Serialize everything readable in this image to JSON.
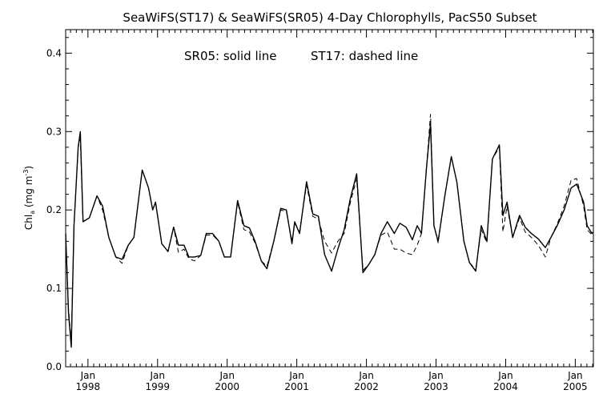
{
  "chart_data": {
    "type": "line",
    "title": "SeaWiFS(ST17) & SeaWiFS(SR05) 4-Day Chlorophylls, PacS50 Subset",
    "annotation": {
      "sr05": "SR05: solid line",
      "st17": "ST17: dashed line"
    },
    "ylabel": {
      "main": "Chl",
      "sub": "a",
      "units": " (mg m",
      "exp": "-3",
      "close": ")"
    },
    "ylim": [
      0,
      0.43
    ],
    "xlim": [
      1997.68,
      2005.26
    ],
    "y_ticks": [
      0.0,
      0.1,
      0.2,
      0.3,
      0.4
    ],
    "y_tick_labels": [
      "0.0",
      "0.1",
      "0.2",
      "0.3",
      "0.4"
    ],
    "x_ticks": [
      {
        "month": "Jan",
        "year": "1998",
        "x": 1998.0
      },
      {
        "month": "Jan",
        "year": "1999",
        "x": 1999.0
      },
      {
        "month": "Jan",
        "year": "2000",
        "x": 2000.0
      },
      {
        "month": "Jan",
        "year": "2001",
        "x": 2001.0
      },
      {
        "month": "Jan",
        "year": "2002",
        "x": 2002.0
      },
      {
        "month": "Jan",
        "year": "2003",
        "x": 2003.0
      },
      {
        "month": "Jan",
        "year": "2004",
        "x": 2004.0
      },
      {
        "month": "Jan",
        "year": "2005",
        "x": 2005.0
      }
    ],
    "x_minor_per_year": 12,
    "grid": false,
    "series": [
      {
        "name": "SR05",
        "style": "solid",
        "color": "#000000",
        "points": [
          [
            1997.68,
            0.17
          ],
          [
            1997.72,
            0.07
          ],
          [
            1997.76,
            0.025
          ],
          [
            1997.8,
            0.18
          ],
          [
            1997.86,
            0.28
          ],
          [
            1997.89,
            0.3
          ],
          [
            1997.93,
            0.185
          ],
          [
            1998.02,
            0.19
          ],
          [
            1998.13,
            0.218
          ],
          [
            1998.21,
            0.205
          ],
          [
            1998.3,
            0.165
          ],
          [
            1998.4,
            0.14
          ],
          [
            1998.49,
            0.137
          ],
          [
            1998.58,
            0.155
          ],
          [
            1998.66,
            0.165
          ],
          [
            1998.78,
            0.251
          ],
          [
            1998.87,
            0.228
          ],
          [
            1998.93,
            0.2
          ],
          [
            1998.97,
            0.21
          ],
          [
            1999.06,
            0.157
          ],
          [
            1999.15,
            0.147
          ],
          [
            1999.23,
            0.178
          ],
          [
            1999.3,
            0.155
          ],
          [
            1999.38,
            0.155
          ],
          [
            1999.45,
            0.14
          ],
          [
            1999.53,
            0.14
          ],
          [
            1999.62,
            0.142
          ],
          [
            1999.7,
            0.17
          ],
          [
            1999.79,
            0.17
          ],
          [
            1999.88,
            0.16
          ],
          [
            1999.96,
            0.14
          ],
          [
            2000.05,
            0.14
          ],
          [
            2000.15,
            0.212
          ],
          [
            2000.24,
            0.18
          ],
          [
            2000.32,
            0.177
          ],
          [
            2000.4,
            0.16
          ],
          [
            2000.49,
            0.135
          ],
          [
            2000.57,
            0.125
          ],
          [
            2000.67,
            0.16
          ],
          [
            2000.77,
            0.202
          ],
          [
            2000.85,
            0.2
          ],
          [
            2000.93,
            0.157
          ],
          [
            2000.97,
            0.185
          ],
          [
            2001.04,
            0.17
          ],
          [
            2001.14,
            0.236
          ],
          [
            2001.23,
            0.195
          ],
          [
            2001.31,
            0.192
          ],
          [
            2001.4,
            0.143
          ],
          [
            2001.5,
            0.122
          ],
          [
            2001.59,
            0.15
          ],
          [
            2001.68,
            0.175
          ],
          [
            2001.77,
            0.215
          ],
          [
            2001.86,
            0.246
          ],
          [
            2001.95,
            0.12
          ],
          [
            2002.03,
            0.13
          ],
          [
            2002.12,
            0.143
          ],
          [
            2002.21,
            0.17
          ],
          [
            2002.3,
            0.185
          ],
          [
            2002.4,
            0.17
          ],
          [
            2002.48,
            0.183
          ],
          [
            2002.57,
            0.178
          ],
          [
            2002.66,
            0.162
          ],
          [
            2002.73,
            0.18
          ],
          [
            2002.79,
            0.17
          ],
          [
            2002.86,
            0.25
          ],
          [
            2002.92,
            0.31
          ],
          [
            2002.97,
            0.18
          ],
          [
            2003.03,
            0.16
          ],
          [
            2003.13,
            0.22
          ],
          [
            2003.22,
            0.268
          ],
          [
            2003.3,
            0.235
          ],
          [
            2003.4,
            0.16
          ],
          [
            2003.48,
            0.133
          ],
          [
            2003.57,
            0.122
          ],
          [
            2003.65,
            0.18
          ],
          [
            2003.73,
            0.16
          ],
          [
            2003.81,
            0.265
          ],
          [
            2003.91,
            0.283
          ],
          [
            2003.96,
            0.193
          ],
          [
            2004.02,
            0.21
          ],
          [
            2004.1,
            0.165
          ],
          [
            2004.2,
            0.193
          ],
          [
            2004.28,
            0.178
          ],
          [
            2004.37,
            0.17
          ],
          [
            2004.47,
            0.163
          ],
          [
            2004.57,
            0.152
          ],
          [
            2004.65,
            0.165
          ],
          [
            2004.74,
            0.18
          ],
          [
            2004.84,
            0.2
          ],
          [
            2004.94,
            0.228
          ],
          [
            2005.02,
            0.233
          ],
          [
            2005.12,
            0.21
          ],
          [
            2005.17,
            0.18
          ],
          [
            2005.24,
            0.17
          ],
          [
            2005.26,
            0.172
          ]
        ]
      },
      {
        "name": "ST17",
        "style": "dashed",
        "color": "#000000",
        "points": [
          [
            1997.68,
            0.17
          ],
          [
            1997.72,
            0.075
          ],
          [
            1997.76,
            0.03
          ],
          [
            1997.8,
            0.18
          ],
          [
            1997.86,
            0.28
          ],
          [
            1997.89,
            0.29
          ],
          [
            1997.93,
            0.185
          ],
          [
            1998.02,
            0.19
          ],
          [
            1998.13,
            0.218
          ],
          [
            1998.21,
            0.2
          ],
          [
            1998.3,
            0.165
          ],
          [
            1998.4,
            0.14
          ],
          [
            1998.49,
            0.132
          ],
          [
            1998.58,
            0.155
          ],
          [
            1998.66,
            0.165
          ],
          [
            1998.78,
            0.251
          ],
          [
            1998.87,
            0.228
          ],
          [
            1998.93,
            0.2
          ],
          [
            1998.97,
            0.21
          ],
          [
            1999.06,
            0.157
          ],
          [
            1999.15,
            0.147
          ],
          [
            1999.23,
            0.178
          ],
          [
            1999.3,
            0.146
          ],
          [
            1999.38,
            0.15
          ],
          [
            1999.45,
            0.138
          ],
          [
            1999.53,
            0.135
          ],
          [
            1999.62,
            0.142
          ],
          [
            1999.7,
            0.168
          ],
          [
            1999.79,
            0.168
          ],
          [
            1999.88,
            0.16
          ],
          [
            1999.96,
            0.14
          ],
          [
            2000.05,
            0.14
          ],
          [
            2000.15,
            0.21
          ],
          [
            2000.24,
            0.175
          ],
          [
            2000.32,
            0.172
          ],
          [
            2000.4,
            0.158
          ],
          [
            2000.49,
            0.135
          ],
          [
            2000.57,
            0.128
          ],
          [
            2000.67,
            0.16
          ],
          [
            2000.77,
            0.2
          ],
          [
            2000.85,
            0.198
          ],
          [
            2000.93,
            0.16
          ],
          [
            2000.97,
            0.183
          ],
          [
            2001.04,
            0.172
          ],
          [
            2001.14,
            0.232
          ],
          [
            2001.23,
            0.192
          ],
          [
            2001.31,
            0.188
          ],
          [
            2001.4,
            0.16
          ],
          [
            2001.5,
            0.145
          ],
          [
            2001.59,
            0.16
          ],
          [
            2001.68,
            0.17
          ],
          [
            2001.77,
            0.21
          ],
          [
            2001.86,
            0.24
          ],
          [
            2001.95,
            0.123
          ],
          [
            2002.03,
            0.13
          ],
          [
            2002.12,
            0.143
          ],
          [
            2002.21,
            0.168
          ],
          [
            2002.3,
            0.172
          ],
          [
            2002.4,
            0.15
          ],
          [
            2002.48,
            0.15
          ],
          [
            2002.57,
            0.145
          ],
          [
            2002.66,
            0.143
          ],
          [
            2002.73,
            0.155
          ],
          [
            2002.79,
            0.17
          ],
          [
            2002.86,
            0.25
          ],
          [
            2002.92,
            0.322
          ],
          [
            2002.97,
            0.18
          ],
          [
            2003.03,
            0.158
          ],
          [
            2003.13,
            0.22
          ],
          [
            2003.22,
            0.268
          ],
          [
            2003.3,
            0.235
          ],
          [
            2003.4,
            0.16
          ],
          [
            2003.48,
            0.133
          ],
          [
            2003.57,
            0.124
          ],
          [
            2003.65,
            0.175
          ],
          [
            2003.73,
            0.158
          ],
          [
            2003.81,
            0.265
          ],
          [
            2003.91,
            0.28
          ],
          [
            2003.96,
            0.172
          ],
          [
            2004.02,
            0.205
          ],
          [
            2004.1,
            0.165
          ],
          [
            2004.2,
            0.19
          ],
          [
            2004.28,
            0.172
          ],
          [
            2004.37,
            0.165
          ],
          [
            2004.47,
            0.155
          ],
          [
            2004.57,
            0.14
          ],
          [
            2004.65,
            0.165
          ],
          [
            2004.74,
            0.182
          ],
          [
            2004.84,
            0.205
          ],
          [
            2004.94,
            0.238
          ],
          [
            2005.02,
            0.24
          ],
          [
            2005.12,
            0.205
          ],
          [
            2005.17,
            0.175
          ],
          [
            2005.24,
            0.168
          ],
          [
            2005.26,
            0.17
          ]
        ]
      }
    ]
  }
}
